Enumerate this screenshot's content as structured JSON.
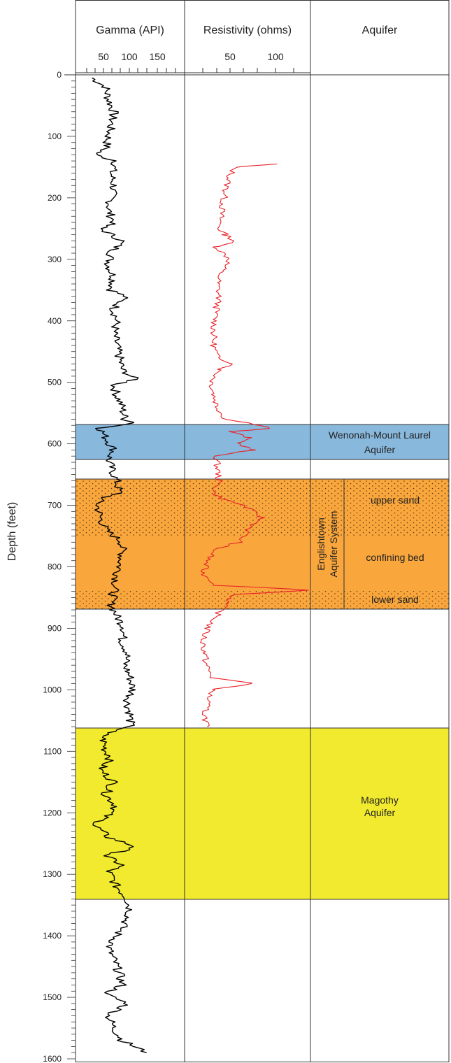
{
  "columns": {
    "gamma": "Gamma (API)",
    "resistivity": "Resistivity (ohms)",
    "aquifer": "Aquifer"
  },
  "gamma_ticks": [
    "50",
    "100",
    "150"
  ],
  "resistivity_ticks": [
    "50",
    "100"
  ],
  "depth_label": "Depth (feet)",
  "depth_ticks": [
    "0",
    "100",
    "200",
    "300",
    "400",
    "500",
    "600",
    "700",
    "800",
    "900",
    "1000",
    "1100",
    "1200",
    "1300",
    "1400",
    "1500",
    "1600"
  ],
  "units": {
    "wenonah": {
      "line1": "Wenonah-Mount Laurel",
      "line2": "Aquifer",
      "color": "#88b8dc"
    },
    "englishtown": {
      "line1": "Englishtown",
      "line2": "Aquifer System",
      "color": "#f9a63d"
    },
    "upper_sand": "upper sand",
    "confining_bed": "confining bed",
    "lower_sand": "lower sand",
    "magothy": {
      "line1": "Magothy",
      "line2": "Aquifer",
      "color": "#f2ea2e"
    }
  },
  "colors": {
    "gamma_curve": "#000000",
    "resistivity_curve": "#e8232a",
    "grid": "#333333"
  },
  "chart_data": {
    "type": "line",
    "ylabel": "Depth (feet)",
    "ylim": [
      0,
      1600
    ],
    "y_inverted": true,
    "tracks": [
      {
        "name": "Gamma (API)",
        "xticks": [
          50,
          100,
          150
        ],
        "color": "#000000",
        "depth": [
          5,
          20,
          40,
          60,
          80,
          100,
          120,
          130,
          140,
          160,
          180,
          200,
          220,
          240,
          250,
          270,
          290,
          310,
          330,
          350,
          360,
          380,
          400,
          420,
          440,
          460,
          480,
          495,
          505,
          520,
          540,
          560,
          566,
          575,
          590,
          610,
          625,
          640,
          660,
          680,
          690,
          700,
          720,
          740,
          760,
          780,
          800,
          820,
          840,
          860,
          880,
          900,
          920,
          940,
          960,
          980,
          1000,
          1020,
          1040,
          1060,
          1070,
          1080,
          1100,
          1110,
          1130,
          1150,
          1170,
          1190,
          1210,
          1220,
          1240,
          1255,
          1270,
          1285,
          1295,
          1320,
          1340,
          1360,
          1380,
          1400,
          1420,
          1440,
          1460,
          1480,
          1495,
          1510,
          1530,
          1550,
          1570,
          1590
        ],
        "value": [
          15,
          40,
          45,
          55,
          50,
          45,
          40,
          20,
          60,
          50,
          55,
          50,
          45,
          55,
          30,
          70,
          50,
          45,
          55,
          50,
          75,
          55,
          60,
          55,
          60,
          65,
          70,
          95,
          55,
          60,
          70,
          75,
          95,
          30,
          40,
          55,
          45,
          50,
          60,
          65,
          30,
          25,
          30,
          40,
          70,
          70,
          65,
          60,
          55,
          50,
          60,
          75,
          70,
          80,
          75,
          85,
          90,
          80,
          85,
          85,
          40,
          35,
          40,
          50,
          30,
          55,
          40,
          60,
          35,
          20,
          45,
          95,
          40,
          70,
          45,
          60,
          80,
          85,
          75,
          60,
          45,
          55,
          65,
          70,
          40,
          80,
          45,
          55,
          70,
          115
        ]
      },
      {
        "name": "Resistivity (ohms)",
        "xticks": [
          50,
          100
        ],
        "color": "#e8232a",
        "depth": [
          145,
          150,
          170,
          190,
          210,
          230,
          250,
          260,
          270,
          280,
          300,
          320,
          340,
          360,
          380,
          400,
          420,
          440,
          460,
          470,
          480,
          500,
          520,
          540,
          560,
          570,
          575,
          580,
          590,
          600,
          610,
          615,
          620,
          640,
          660,
          680,
          690,
          700,
          720,
          740,
          760,
          770,
          790,
          810,
          830,
          838,
          845,
          860,
          880,
          900,
          920,
          940,
          960,
          980,
          990,
          1000,
          1020,
          1040,
          1060
        ],
        "value": [
          100,
          55,
          48,
          45,
          42,
          40,
          38,
          45,
          55,
          35,
          50,
          40,
          36,
          38,
          35,
          33,
          32,
          32,
          36,
          55,
          38,
          30,
          32,
          36,
          45,
          85,
          95,
          50,
          70,
          60,
          75,
          50,
          35,
          36,
          38,
          32,
          42,
          65,
          85,
          70,
          60,
          35,
          25,
          20,
          35,
          140,
          55,
          45,
          35,
          25,
          20,
          22,
          24,
          30,
          75,
          30,
          25,
          22,
          25
        ]
      }
    ]
  }
}
